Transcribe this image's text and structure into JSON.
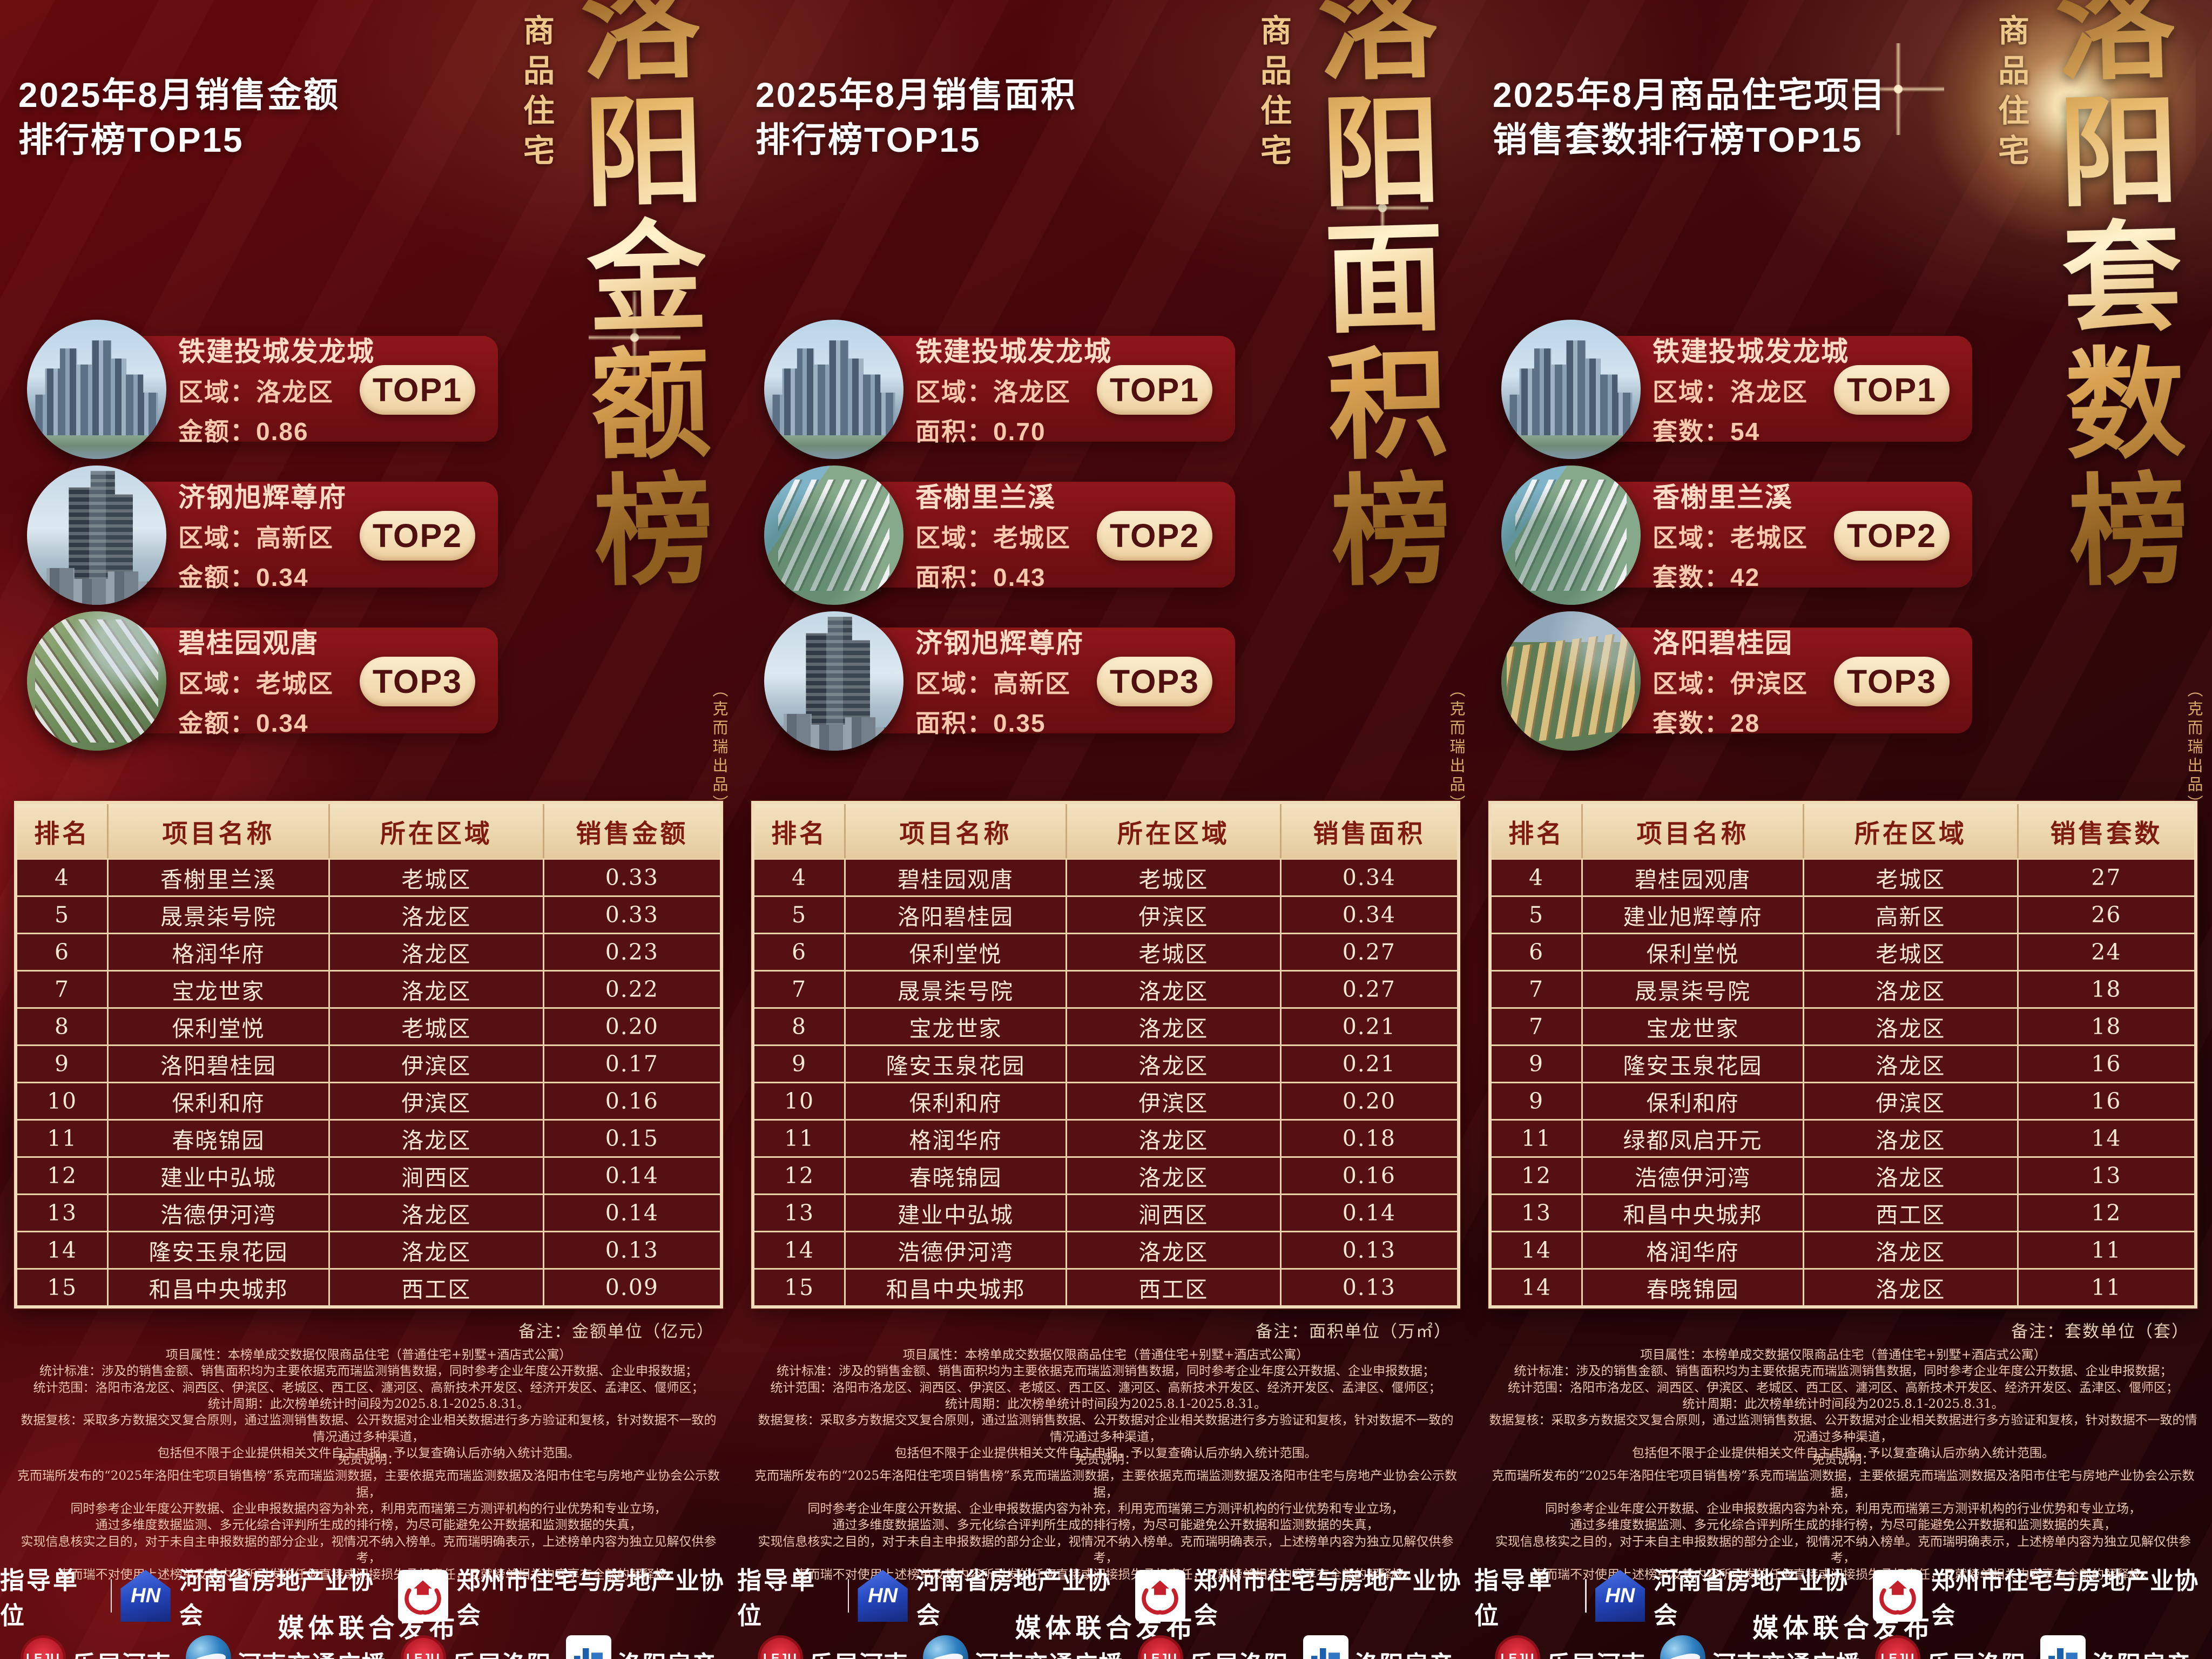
{
  "brand": {
    "product_tag": "商品住宅",
    "producer_note": "（克而瑞出品）"
  },
  "colors": {
    "background_red": "#4a070b",
    "card_red": "#8d161a",
    "pill_cream": "#f3ddba",
    "pill_text": "#50100f",
    "table_header_bg": "#e9d3ae",
    "table_header_text": "#7d1b10",
    "table_body_bg": "#551013",
    "table_body_text": "#f6e7d3",
    "calligraphy_gold": "#e0b267",
    "title_text": "#ffffff"
  },
  "panels": [
    {
      "title_line1": "2025年8月销售金额",
      "title_line2": "排行榜TOP15",
      "calligraphy": "洛阳金额榜",
      "top_cards": [
        {
          "rank": "TOP1",
          "name": "铁建投城发龙城",
          "district_line": "区域：洛龙区",
          "value_line": "金额：0.86",
          "photo": "towers-riverside"
        },
        {
          "rank": "TOP2",
          "name": "济钢旭辉尊府",
          "district_line": "区域：高新区",
          "value_line": "金额：0.34",
          "photo": "tower-closeup"
        },
        {
          "rank": "TOP3",
          "name": "碧桂园观唐",
          "district_line": "区域：老城区",
          "value_line": "金额：0.34",
          "photo": "aerial-estate"
        }
      ],
      "table_headers": [
        "排名",
        "项目名称",
        "所在区域",
        "销售金额"
      ],
      "table_rows": [
        [
          "4",
          "香榭里兰溪",
          "老城区",
          "0.33"
        ],
        [
          "5",
          "晟景柒号院",
          "洛龙区",
          "0.33"
        ],
        [
          "6",
          "格润华府",
          "洛龙区",
          "0.23"
        ],
        [
          "7",
          "宝龙世家",
          "洛龙区",
          "0.22"
        ],
        [
          "8",
          "保利堂悦",
          "老城区",
          "0.20"
        ],
        [
          "9",
          "洛阳碧桂园",
          "伊滨区",
          "0.17"
        ],
        [
          "10",
          "保利和府",
          "伊滨区",
          "0.16"
        ],
        [
          "11",
          "春晓锦园",
          "洛龙区",
          "0.15"
        ],
        [
          "12",
          "建业中弘城",
          "涧西区",
          "0.14"
        ],
        [
          "13",
          "浩德伊河湾",
          "洛龙区",
          "0.14"
        ],
        [
          "14",
          "隆安玉泉花园",
          "洛龙区",
          "0.13"
        ],
        [
          "15",
          "和昌中央城邦",
          "西工区",
          "0.09"
        ]
      ],
      "note": "备注：金额单位（亿元）"
    },
    {
      "title_line1": "2025年8月销售面积",
      "title_line2": "排行榜TOP15",
      "calligraphy": "洛阳面积榜",
      "top_cards": [
        {
          "rank": "TOP1",
          "name": "铁建投城发龙城",
          "district_line": "区域：洛龙区",
          "value_line": "面积：0.70",
          "photo": "towers-riverside"
        },
        {
          "rank": "TOP2",
          "name": "香榭里兰溪",
          "district_line": "区域：老城区",
          "value_line": "面积：0.43",
          "photo": "aerial-waterfront"
        },
        {
          "rank": "TOP3",
          "name": "济钢旭辉尊府",
          "district_line": "区域：高新区",
          "value_line": "面积：0.35",
          "photo": "tower-closeup"
        }
      ],
      "table_headers": [
        "排名",
        "项目名称",
        "所在区域",
        "销售面积"
      ],
      "table_rows": [
        [
          "4",
          "碧桂园观唐",
          "老城区",
          "0.34"
        ],
        [
          "5",
          "洛阳碧桂园",
          "伊滨区",
          "0.34"
        ],
        [
          "6",
          "保利堂悦",
          "老城区",
          "0.27"
        ],
        [
          "7",
          "晟景柒号院",
          "洛龙区",
          "0.27"
        ],
        [
          "8",
          "宝龙世家",
          "洛龙区",
          "0.21"
        ],
        [
          "9",
          "隆安玉泉花园",
          "洛龙区",
          "0.21"
        ],
        [
          "10",
          "保利和府",
          "伊滨区",
          "0.20"
        ],
        [
          "11",
          "格润华府",
          "洛龙区",
          "0.18"
        ],
        [
          "12",
          "春晓锦园",
          "洛龙区",
          "0.16"
        ],
        [
          "13",
          "建业中弘城",
          "涧西区",
          "0.14"
        ],
        [
          "14",
          "浩德伊河湾",
          "洛龙区",
          "0.13"
        ],
        [
          "15",
          "和昌中央城邦",
          "西工区",
          "0.13"
        ]
      ],
      "note": "备注：面积单位（万㎡）"
    },
    {
      "title_line1": "2025年8月商品住宅项目",
      "title_line2": "销售套数排行榜TOP15",
      "calligraphy": "洛阳套数榜",
      "top_cards": [
        {
          "rank": "TOP1",
          "name": "铁建投城发龙城",
          "district_line": "区域：洛龙区",
          "value_line": "套数：54",
          "photo": "towers-riverside"
        },
        {
          "rank": "TOP2",
          "name": "香榭里兰溪",
          "district_line": "区域：老城区",
          "value_line": "套数：42",
          "photo": "aerial-waterfront"
        },
        {
          "rank": "TOP3",
          "name": "洛阳碧桂园",
          "district_line": "区域：伊滨区",
          "value_line": "套数：28",
          "photo": "aerial-terraces"
        }
      ],
      "table_headers": [
        "排名",
        "项目名称",
        "所在区域",
        "销售套数"
      ],
      "table_rows": [
        [
          "4",
          "碧桂园观唐",
          "老城区",
          "27"
        ],
        [
          "5",
          "建业旭辉尊府",
          "高新区",
          "26"
        ],
        [
          "6",
          "保利堂悦",
          "老城区",
          "24"
        ],
        [
          "7",
          "晟景柒号院",
          "洛龙区",
          "18"
        ],
        [
          "7",
          "宝龙世家",
          "洛龙区",
          "18"
        ],
        [
          "9",
          "隆安玉泉花园",
          "洛龙区",
          "16"
        ],
        [
          "9",
          "保利和府",
          "伊滨区",
          "16"
        ],
        [
          "11",
          "绿都凤启开元",
          "洛龙区",
          "14"
        ],
        [
          "12",
          "浩德伊河湾",
          "洛龙区",
          "13"
        ],
        [
          "13",
          "和昌中央城邦",
          "西工区",
          "12"
        ],
        [
          "14",
          "格润华府",
          "洛龙区",
          "11"
        ],
        [
          "14",
          "春晓锦园",
          "洛龙区",
          "11"
        ]
      ],
      "note": "备注：套数单位（套）"
    }
  ],
  "footer": {
    "fine_print": [
      "项目属性：本榜单成交数据仅限商品住宅（普通住宅+别墅+酒店式公寓）",
      "统计标准：涉及的销售金额、销售面积均为主要依据克而瑞监测销售数据，同时参考企业年度公开数据、企业申报数据；",
      "统计范围：洛阳市洛龙区、涧西区、伊滨区、老城区、西工区、瀍河区、高新技术开发区、经济开发区、孟津区、偃师区；",
      "统计周期：此次榜单统计时间段为2025.8.1-2025.8.31。",
      "数据复核：采取多方数据交叉复合原则，通过监测销售数据、公开数据对企业相关数据进行多方验证和复核，针对数据不一致的情况通过多种渠道，",
      "包括但不限于企业提供相关文件自主申报，予以复查确认后亦纳入统计范围。"
    ],
    "disclaimer_title": "免责说明：",
    "disclaimer_lines": [
      "克而瑞所发布的“2025年洛阳住宅项目销售榜”系克而瑞监测数据，主要依据克而瑞监测数据及洛阳市住宅与房地产业协会公示数据，",
      "同时参考企业年度公开数据、企业申报数据内容为补充，利用克而瑞第三方测评机构的行业优势和专业立场，",
      "通过多维度数据监测、多元化综合评判所生成的排行榜，为尽可能避免公开数据和监测数据的失真，",
      "实现信息核实之目的，对于未自主申报数据的部分企业，视情况不纳入榜单。克而瑞明确表示，上述榜单内容为独立见解仅供参考，",
      "克而瑞不对使用上述榜单及其内容所引发的任何直接或间接损失承担责任，且就榜单相关内容享有全部的解释权。"
    ],
    "guide_label": "指导单位",
    "orgs": [
      {
        "logo": "henan-association-logo",
        "logo_text": "HN",
        "name": "河南省房地产业协会"
      },
      {
        "logo": "zhengzhou-association-logo",
        "name": "郑州市住宅与房地产业协会"
      }
    ],
    "media_label": "媒体联合发布",
    "media": [
      {
        "logo": "leju-logo",
        "logo_text": "LEJU",
        "name": "乐居河南"
      },
      {
        "logo": "radio-logo",
        "name": "河南交通广播"
      },
      {
        "logo": "leju-logo",
        "logo_text": "LEJU",
        "name": "乐居洛阳"
      },
      {
        "logo": "luoyang-fangchan-logo",
        "name": "洛阳房产"
      }
    ]
  }
}
